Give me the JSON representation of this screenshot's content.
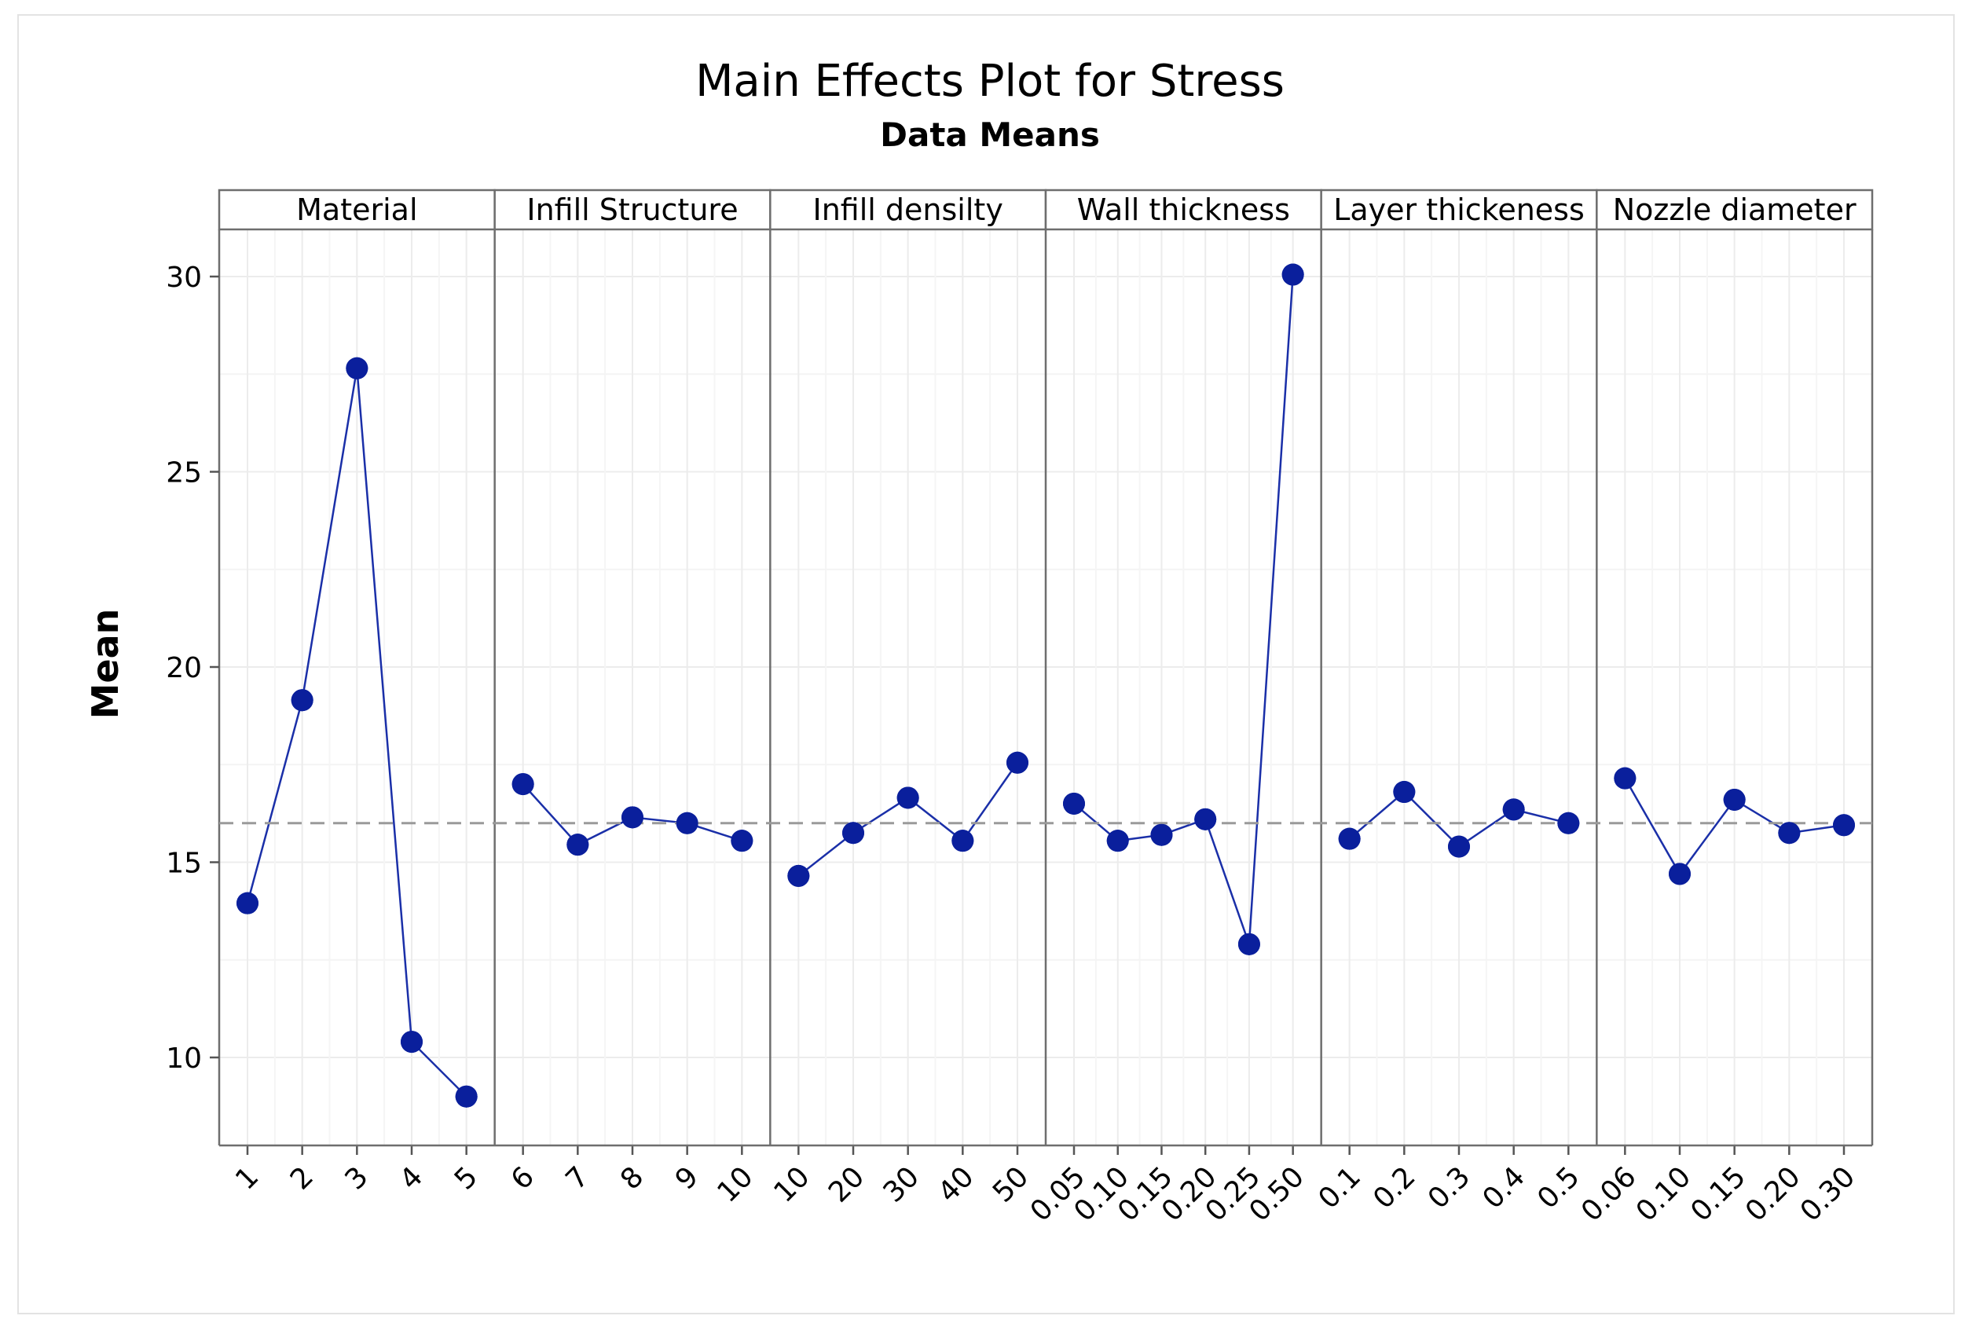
{
  "chart_data": {
    "type": "line",
    "title": "Main Effects Plot for Stress",
    "subtitle": "Data Means",
    "ylabel": "Mean",
    "xlabel": "",
    "ylim": [
      7.8,
      31.2
    ],
    "yticks": [
      10,
      15,
      20,
      25,
      30
    ],
    "reference_line": 16.0,
    "grid": true,
    "series_color": "#1a2fa8",
    "marker_color": "#0a1f9c",
    "panels": [
      {
        "name": "Material",
        "categories": [
          "1",
          "2",
          "3",
          "4",
          "5"
        ],
        "values": [
          13.95,
          19.15,
          27.65,
          10.4,
          9.0
        ]
      },
      {
        "name": "Infill Structure",
        "categories": [
          "6",
          "7",
          "8",
          "9",
          "10"
        ],
        "values": [
          17.0,
          15.45,
          16.15,
          16.0,
          15.55
        ]
      },
      {
        "name": "Infill densilty",
        "categories": [
          "10",
          "20",
          "30",
          "40",
          "50"
        ],
        "values": [
          14.65,
          15.75,
          16.65,
          15.55,
          17.55
        ]
      },
      {
        "name": "Wall thickness",
        "categories": [
          "0.05",
          "0.10",
          "0.15",
          "0.20",
          "0.25",
          "0.50"
        ],
        "values": [
          16.5,
          15.55,
          15.7,
          16.1,
          12.9,
          30.05
        ]
      },
      {
        "name": "Layer thickeness",
        "categories": [
          "0.1",
          "0.2",
          "0.3",
          "0.4",
          "0.5"
        ],
        "values": [
          15.6,
          16.8,
          15.4,
          16.35,
          16.0
        ]
      },
      {
        "name": "Nozzle diameter",
        "categories": [
          "0.06",
          "0.10",
          "0.15",
          "0.20",
          "0.30"
        ],
        "values": [
          17.15,
          14.7,
          16.6,
          15.75,
          15.95
        ]
      }
    ]
  }
}
